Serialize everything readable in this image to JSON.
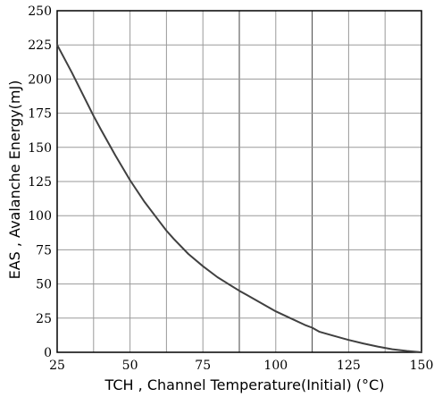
{
  "chart_data": {
    "type": "line",
    "title": "",
    "xlabel": "TCH , Channel Temperature(Initial) (°C)",
    "ylabel": "EAS , Avalanche Energy(mJ)",
    "xlim": [
      25,
      150
    ],
    "ylim": [
      0,
      250
    ],
    "xticks": [
      25,
      50,
      75,
      100,
      125,
      150
    ],
    "yticks": [
      0,
      25,
      50,
      75,
      100,
      125,
      150,
      175,
      200,
      225,
      250
    ],
    "x_gridlines": [
      37.5,
      50,
      62.5,
      75,
      87.5,
      100,
      112.5,
      125,
      137.5
    ],
    "y_gridlines": [
      25,
      50,
      75,
      100,
      125,
      150,
      175,
      200,
      225
    ],
    "grid": true,
    "series": [
      {
        "x": [
          25,
          30,
          37.5,
          40,
          45,
          50,
          55,
          60,
          62.5,
          65,
          70,
          75,
          80,
          87.5,
          90,
          95,
          100,
          105,
          110,
          112.5,
          115,
          120,
          125,
          130,
          135,
          137.5,
          140,
          145,
          150
        ],
        "y": [
          225,
          205,
          173,
          163,
          144,
          126,
          110,
          96,
          89,
          83,
          72,
          63,
          55,
          45,
          42,
          36,
          30,
          25,
          20,
          18,
          15,
          12,
          9,
          6.5,
          4.2,
          3.2,
          2.2,
          1,
          0
        ],
        "color": "#404040"
      }
    ]
  }
}
